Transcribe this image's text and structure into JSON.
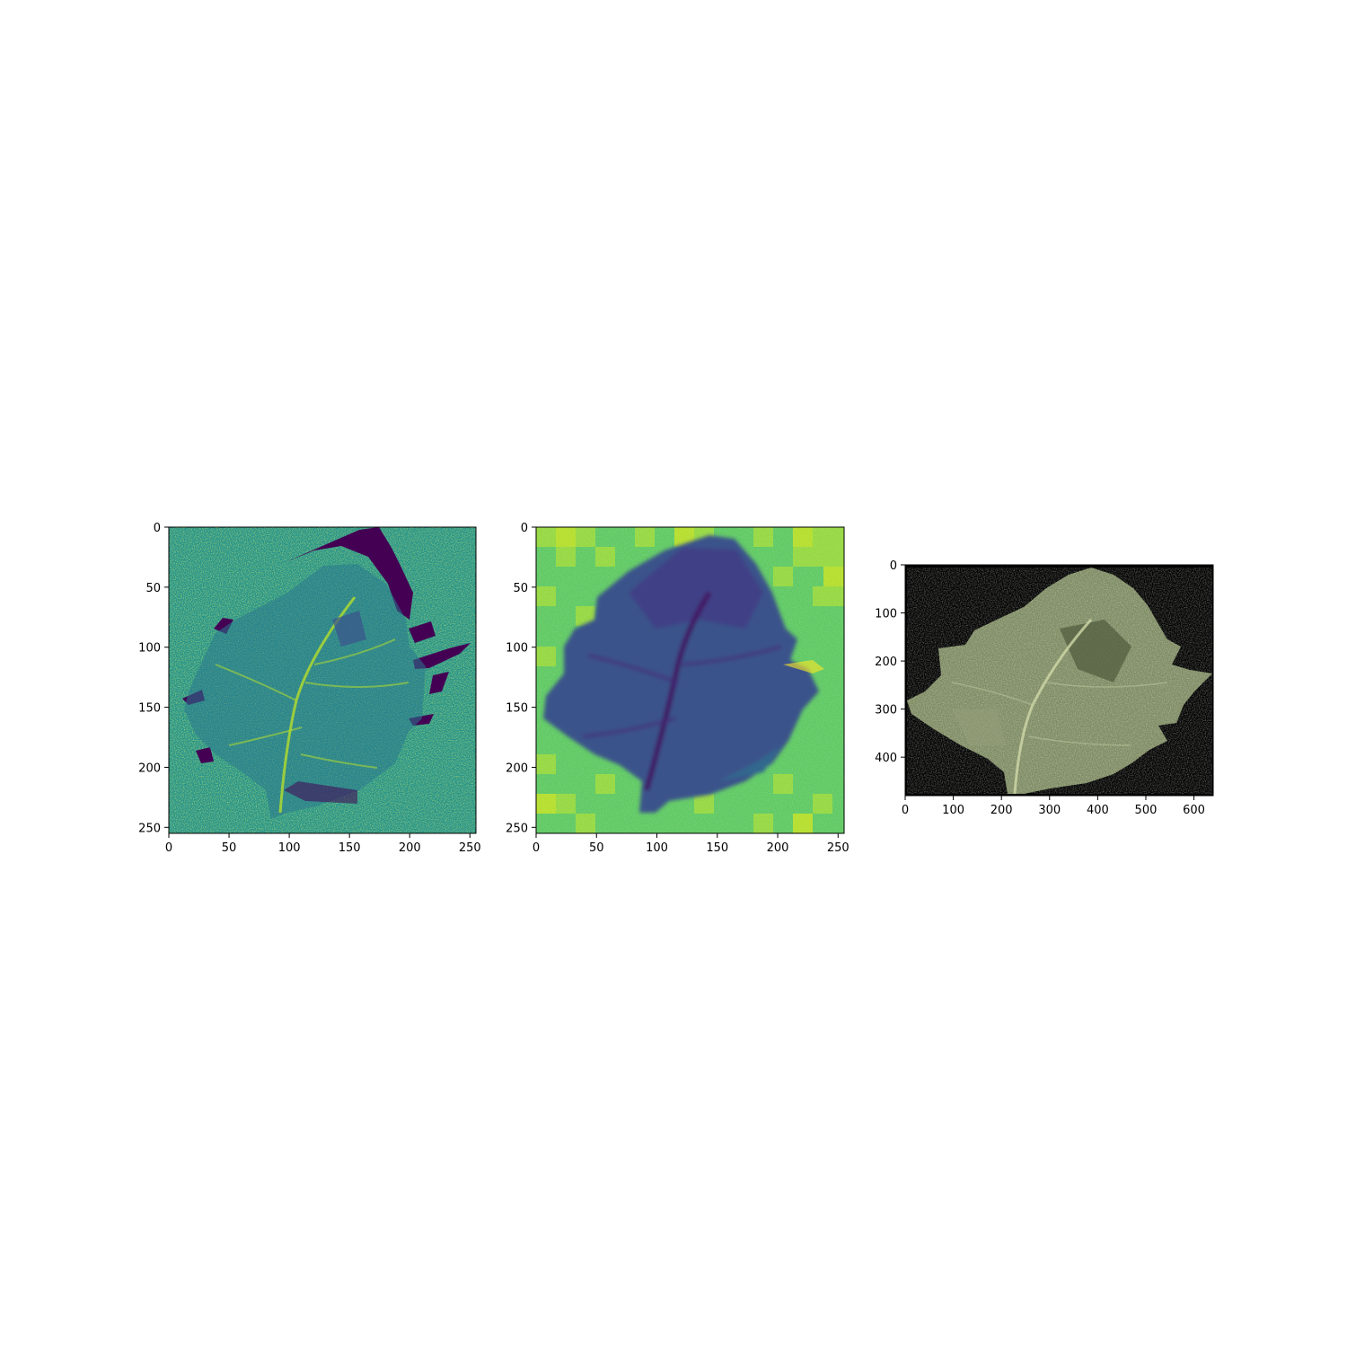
{
  "figure": {
    "background": "#ffffff"
  },
  "colors": {
    "viridis_dark": "#440154",
    "viridis_blue": "#3b528b",
    "viridis_teal": "#21918c",
    "viridis_green": "#5ec962",
    "viridis_yellow": "#fde725",
    "black": "#000000"
  },
  "chart_data": [
    {
      "type": "heatmap",
      "colormap": "viridis",
      "subject": "leaf",
      "title": "",
      "xlabel": "",
      "ylabel": "",
      "xlim": [
        0,
        255
      ],
      "ylim": [
        255,
        0
      ],
      "xticks": [
        0,
        50,
        100,
        150,
        200,
        250
      ],
      "yticks": [
        0,
        50,
        100,
        150,
        200,
        250
      ],
      "xtick_labels": [
        "0",
        "50",
        "100",
        "150",
        "200",
        "250"
      ],
      "ytick_labels": [
        "0",
        "50",
        "100",
        "150",
        "200",
        "250"
      ]
    },
    {
      "type": "heatmap",
      "colormap": "viridis",
      "subject": "leaf",
      "title": "",
      "xlabel": "",
      "ylabel": "",
      "xlim": [
        0,
        255
      ],
      "ylim": [
        255,
        0
      ],
      "xticks": [
        0,
        50,
        100,
        150,
        200,
        250
      ],
      "yticks": [
        0,
        50,
        100,
        150,
        200,
        250
      ],
      "xtick_labels": [
        "0",
        "50",
        "100",
        "150",
        "200",
        "250"
      ],
      "ytick_labels": [
        "0",
        "50",
        "100",
        "150",
        "200",
        "250"
      ]
    },
    {
      "type": "heatmap",
      "colormap": "rgb",
      "subject": "leaf",
      "title": "",
      "xlabel": "",
      "ylabel": "",
      "xlim": [
        0,
        640
      ],
      "ylim": [
        480,
        0
      ],
      "xticks": [
        0,
        100,
        200,
        300,
        400,
        500,
        600
      ],
      "yticks": [
        0,
        100,
        200,
        300,
        400
      ],
      "xtick_labels": [
        "0",
        "100",
        "200",
        "300",
        "400",
        "500",
        "600"
      ],
      "ytick_labels": [
        "0",
        "100",
        "200",
        "300",
        "400"
      ]
    }
  ]
}
